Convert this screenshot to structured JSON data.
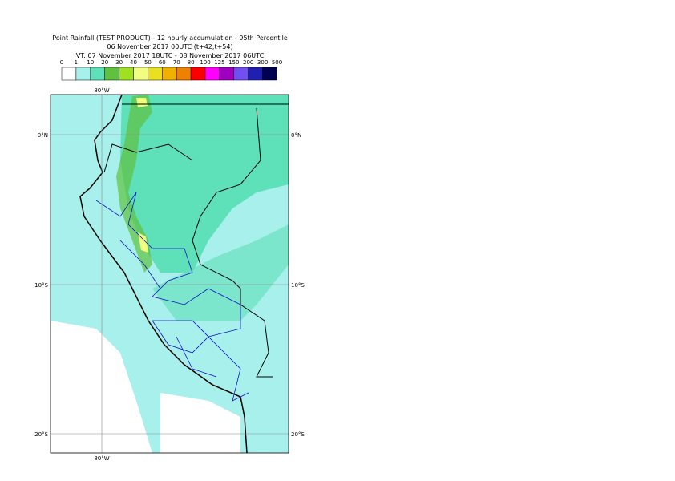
{
  "header": {
    "title_lines": [
      "Point Rainfall (TEST PRODUCT) - 12 hourly accumulation - 95th Percentile",
      "06 November 2017 00UTC (t+42,t+54)",
      "VT: 07 November 2017 18UTC - 08 November 2017 06UTC"
    ]
  },
  "legend": {
    "labels": [
      "0",
      "1",
      "10",
      "20",
      "30",
      "40",
      "50",
      "60",
      "70",
      "80",
      "100",
      "125",
      "150",
      "200",
      "300",
      "500"
    ],
    "colors": [
      "#ffffff",
      "#a8f0ec",
      "#5ee0b8",
      "#60c040",
      "#a0e020",
      "#f0ff80",
      "#e8e020",
      "#f0b000",
      "#f08000",
      "#ff0000",
      "#ff00ff",
      "#a000c0",
      "#7050f0",
      "#2020b0",
      "#000050"
    ]
  },
  "map": {
    "top_labels": [
      "80°W"
    ],
    "bottom_labels": [
      "80°W"
    ],
    "left_labels": [
      "0°N",
      "10°S",
      "20°S"
    ],
    "right_labels": [
      "0°N",
      "10°S",
      "20°S"
    ]
  }
}
